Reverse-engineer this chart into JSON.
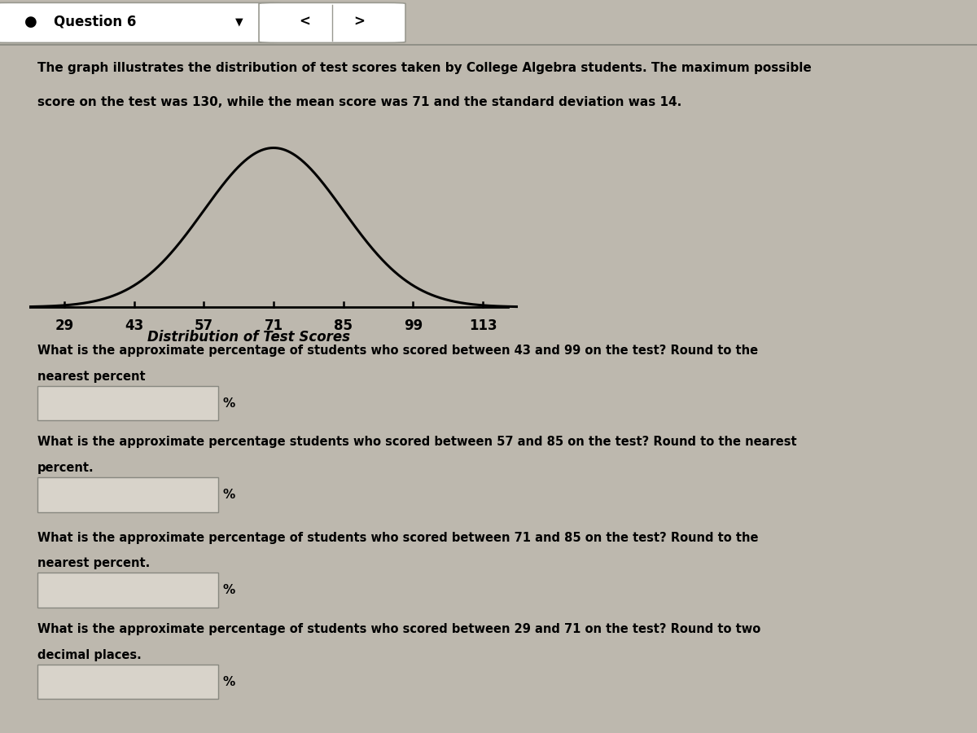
{
  "title_bar_text": "Question 6",
  "description_line1": "The graph illustrates the distribution of test scores taken by College Algebra students. The maximum possible",
  "description_line2": "score on the test was 130, while the mean score was 71 and the standard deviation was 14.",
  "mean": 71,
  "std": 14,
  "x_ticks": [
    29,
    43,
    57,
    71,
    85,
    99,
    113
  ],
  "x_label": "Distribution of Test Scores",
  "bg_color": "#bdb8ae",
  "curve_color": "#000000",
  "axis_line_color": "#000000",
  "question1": "What is the approximate percentage of students who scored between 43 and 99 on the test? Round to the\nnearest percent",
  "question2": "What is the approximate percentage students who scored between 57 and 85 on the test? Round to the nearest\npercent.",
  "question3": "What is the approximate percentage of students who scored between 71 and 85 on the test? Round to the\nnearest percent.",
  "question4": "What is the approximate percentage of students who scored between 29 and 71 on the test? Round to two\ndecimal places.",
  "box_facecolor": "#ccc8be",
  "box_edgecolor": "#888880",
  "header_bg": "#c8c3b8",
  "header_border": "#999990",
  "text_color": "#000000"
}
